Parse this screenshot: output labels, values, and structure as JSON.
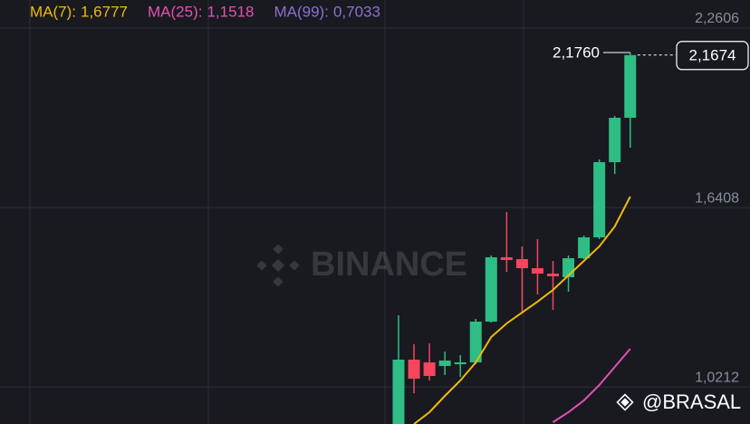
{
  "chart_data": {
    "type": "candlestick",
    "ylim": [
      0.8932,
      2.3576
    ],
    "yticks": [
      {
        "value": 1.0212,
        "label": "1,0212"
      },
      {
        "value": 1.6408,
        "label": "1,6408"
      },
      {
        "value": 2.2606,
        "label": "2,2606"
      }
    ],
    "grid": true,
    "up_color": "#2ebd85",
    "down_color": "#f6465d",
    "candles": [
      {
        "open": 0.887,
        "high": 1.2687,
        "low": 0.887,
        "close": 1.1154
      },
      {
        "open": 1.1154,
        "high": 1.1686,
        "low": 0.9996,
        "close": 1.0497
      },
      {
        "open": 1.106,
        "high": 1.1717,
        "low": 1.0434,
        "close": 1.0591
      },
      {
        "open": 1.0935,
        "high": 1.1435,
        "low": 1.0622,
        "close": 1.1123
      },
      {
        "open": 1.0997,
        "high": 1.131,
        "low": 1.0559,
        "close": 1.106
      },
      {
        "open": 1.106,
        "high": 1.2562,
        "low": 1.0997,
        "close": 1.2468
      },
      {
        "open": 1.2468,
        "high": 1.4752,
        "low": 1.2437,
        "close": 1.469
      },
      {
        "open": 1.469,
        "high": 1.6254,
        "low": 1.4189,
        "close": 1.4596
      },
      {
        "open": 1.4627,
        "high": 1.5065,
        "low": 1.2812,
        "close": 1.4314
      },
      {
        "open": 1.4314,
        "high": 1.5315,
        "low": 1.3407,
        "close": 1.4126
      },
      {
        "open": 1.4126,
        "high": 1.4564,
        "low": 1.2875,
        "close": 1.4033
      },
      {
        "open": 1.4001,
        "high": 1.4752,
        "low": 1.3501,
        "close": 1.4658
      },
      {
        "open": 1.4658,
        "high": 1.5441,
        "low": 1.4627,
        "close": 1.5378
      },
      {
        "open": 1.5378,
        "high": 1.8069,
        "low": 1.5315,
        "close": 1.7975
      },
      {
        "open": 1.7975,
        "high": 1.9571,
        "low": 1.7569,
        "close": 1.9508
      },
      {
        "open": 1.9508,
        "high": 2.176,
        "low": 1.8476,
        "close": 2.1674,
        "high_label": "2,1760",
        "close_label": "2,1674"
      }
    ],
    "ma_series": [
      {
        "name": "MA(7):",
        "label": "1,6777",
        "color": "#f0b90b",
        "values": [
          null,
          0.8932,
          0.9339,
          0.9902,
          1.0434,
          1.106,
          1.1936,
          1.2406,
          1.2781,
          1.3157,
          1.3563,
          1.4064,
          1.4564,
          1.5065,
          1.5753,
          1.6786
        ]
      },
      {
        "name": "MA(25):",
        "label": "1,1518",
        "color": "#e64fb4",
        "values": [
          null,
          null,
          null,
          null,
          null,
          null,
          null,
          null,
          null,
          null,
          0.8995,
          0.9339,
          0.9746,
          1.0278,
          1.0904,
          1.153
        ]
      },
      {
        "name": "MA(99):",
        "label": "0,7033",
        "color": "#8f6fd0"
      }
    ],
    "watermark": "BINANCE",
    "handle": "@BRASAL"
  }
}
